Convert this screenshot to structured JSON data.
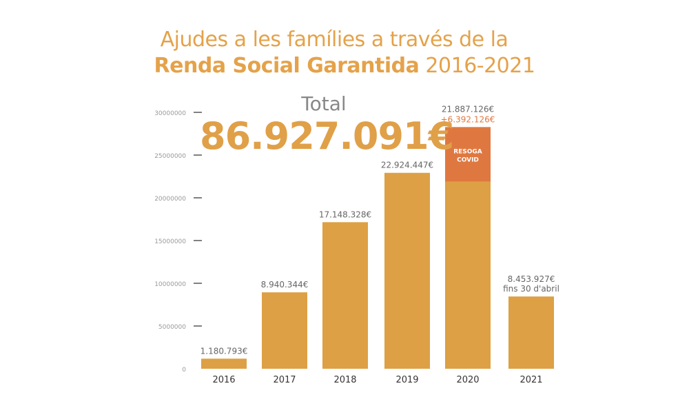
{
  "title_line1": "Ajudes a les famílies a través de la",
  "title_line2_bold": "Renda Social Garantida",
  "title_line2_rest": " 2016-2021",
  "total_label": "Total",
  "total_value": "86.927.091€",
  "colors": {
    "bar": "#DDA045",
    "covid": "#DF7840",
    "text": "#666666",
    "title": "#E4A24A"
  },
  "chart_data": {
    "type": "bar",
    "title": "Ajudes a les famílies a través de la Renda Social Garantida 2016-2021",
    "categories": [
      "2016",
      "2017",
      "2018",
      "2019",
      "2020",
      "2021"
    ],
    "series": [
      {
        "name": "Renda Social Garantida",
        "values": [
          1180793,
          8940344,
          17148328,
          22924447,
          21887126,
          8453927
        ]
      },
      {
        "name": "Resoga Covid",
        "values": [
          0,
          0,
          0,
          0,
          6392126,
          0
        ]
      }
    ],
    "data_labels": [
      "1.180.793€",
      "8.940.344€",
      "17.148.328€",
      "22.924.447€",
      "21.887.126€",
      "8.453.927€"
    ],
    "extra_labels": {
      "2020": "+6.392.126€",
      "2021": "fins 30 d'abril"
    },
    "covid_label": [
      "RESOGA",
      "COVID"
    ],
    "yticks": [
      0,
      5000000,
      10000000,
      15000000,
      20000000,
      25000000,
      30000000
    ],
    "ytick_labels": [
      "0",
      "5000000",
      "10000000",
      "15000000",
      "20000000",
      "25000000",
      "30000000"
    ],
    "ylim": [
      0,
      30000000
    ],
    "xlabel": "",
    "ylabel": "",
    "grid": false,
    "legend": "none"
  }
}
